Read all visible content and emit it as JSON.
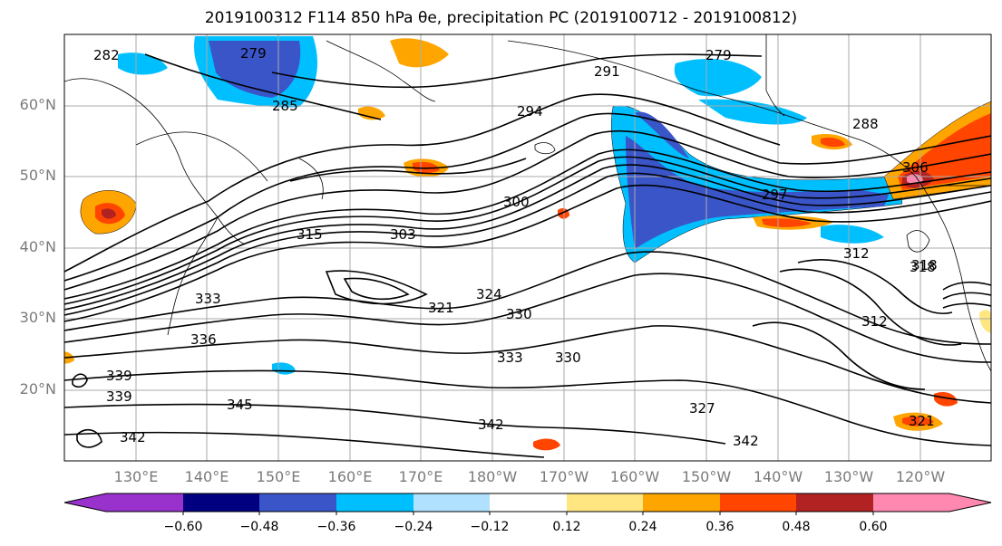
{
  "title": "2019100312 F114 850 hPa θe, precipitation PC (2019100712 - 2019100812)",
  "latitude_labels": [
    "60°N",
    "50°N",
    "40°N",
    "30°N",
    "20°N"
  ],
  "longitude_labels": [
    "130°E",
    "140°E",
    "150°E",
    "160°E",
    "170°E",
    "180°W",
    "170°W",
    "160°W",
    "150°W",
    "140°W",
    "130°W",
    "120°W"
  ],
  "contour_labels": [
    "279",
    "279",
    "282",
    "285",
    "288",
    "291",
    "294",
    "297",
    "300",
    "303",
    "306",
    "312",
    "312",
    "315",
    "318",
    "321",
    "324",
    "327",
    "330",
    "330",
    "333",
    "333",
    "336",
    "339",
    "339",
    "342",
    "342",
    "342",
    "345",
    "318",
    "321"
  ],
  "colorbar": {
    "tick_labels": [
      "−0.60",
      "−0.48",
      "−0.36",
      "−0.24",
      "−0.12",
      "0.12",
      "0.24",
      "0.36",
      "0.48",
      "0.60"
    ],
    "colors": [
      "#9932cc",
      "#000080",
      "#3a55c8",
      "#00bfff",
      "#b0e2ff",
      "#ffffff",
      "#ffe680",
      "#ffa500",
      "#ff4500",
      "#b22222",
      "#ff88b0"
    ]
  }
}
